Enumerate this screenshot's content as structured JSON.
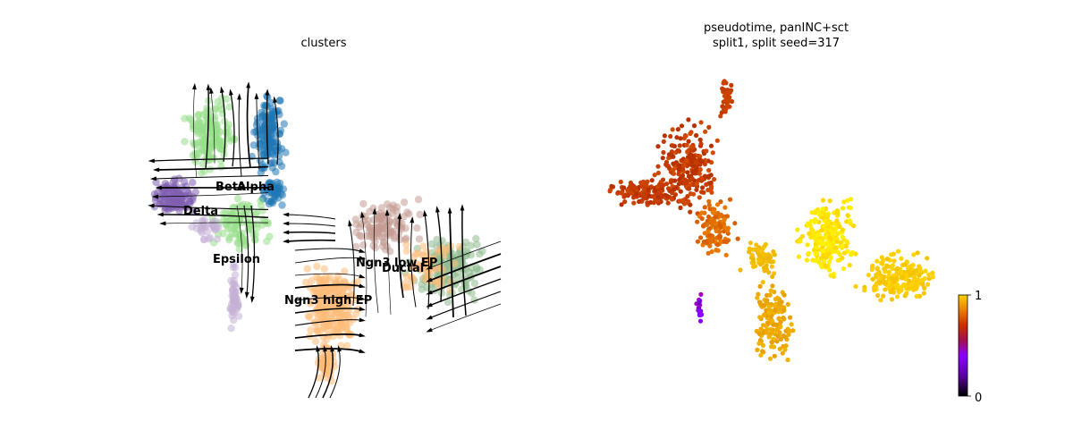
{
  "chart_data": [
    {
      "type": "scatter",
      "title": "clusters",
      "overlay": "velocity-streamlines",
      "axes": "off",
      "legend": "on-data",
      "clusters": [
        {
          "name": "Alpha",
          "color": "#1f77b4"
        },
        {
          "name": "Beta",
          "color": "#98df8a"
        },
        {
          "name": "Delta",
          "color": "#7f5fb0"
        },
        {
          "name": "Epsilon",
          "color": "#c5b0d5"
        },
        {
          "name": "Ngn3 high EP",
          "color": "#ffbb78"
        },
        {
          "name": "Ngn3 low EP",
          "color": "#c49c94"
        },
        {
          "name": "Ductal",
          "color": "#8fbc8f"
        }
      ],
      "labels": [
        {
          "text": "Beta"
        },
        {
          "text": "Alpha"
        },
        {
          "text": "Delta"
        },
        {
          "text": "Epsilon"
        },
        {
          "text": "Ngn3 low EP"
        },
        {
          "text": "Ductal"
        },
        {
          "text": "Ngn3 high EP"
        }
      ]
    },
    {
      "type": "scatter",
      "title_line1": "pseudotime, panINC+sct",
      "title_line2": "split1, split seed=317",
      "axes": "off",
      "colormap": "gnuplot",
      "colorbar": {
        "min": 0,
        "max": 1,
        "tick_min": "0",
        "tick_max": "1",
        "placement": "right"
      }
    }
  ]
}
